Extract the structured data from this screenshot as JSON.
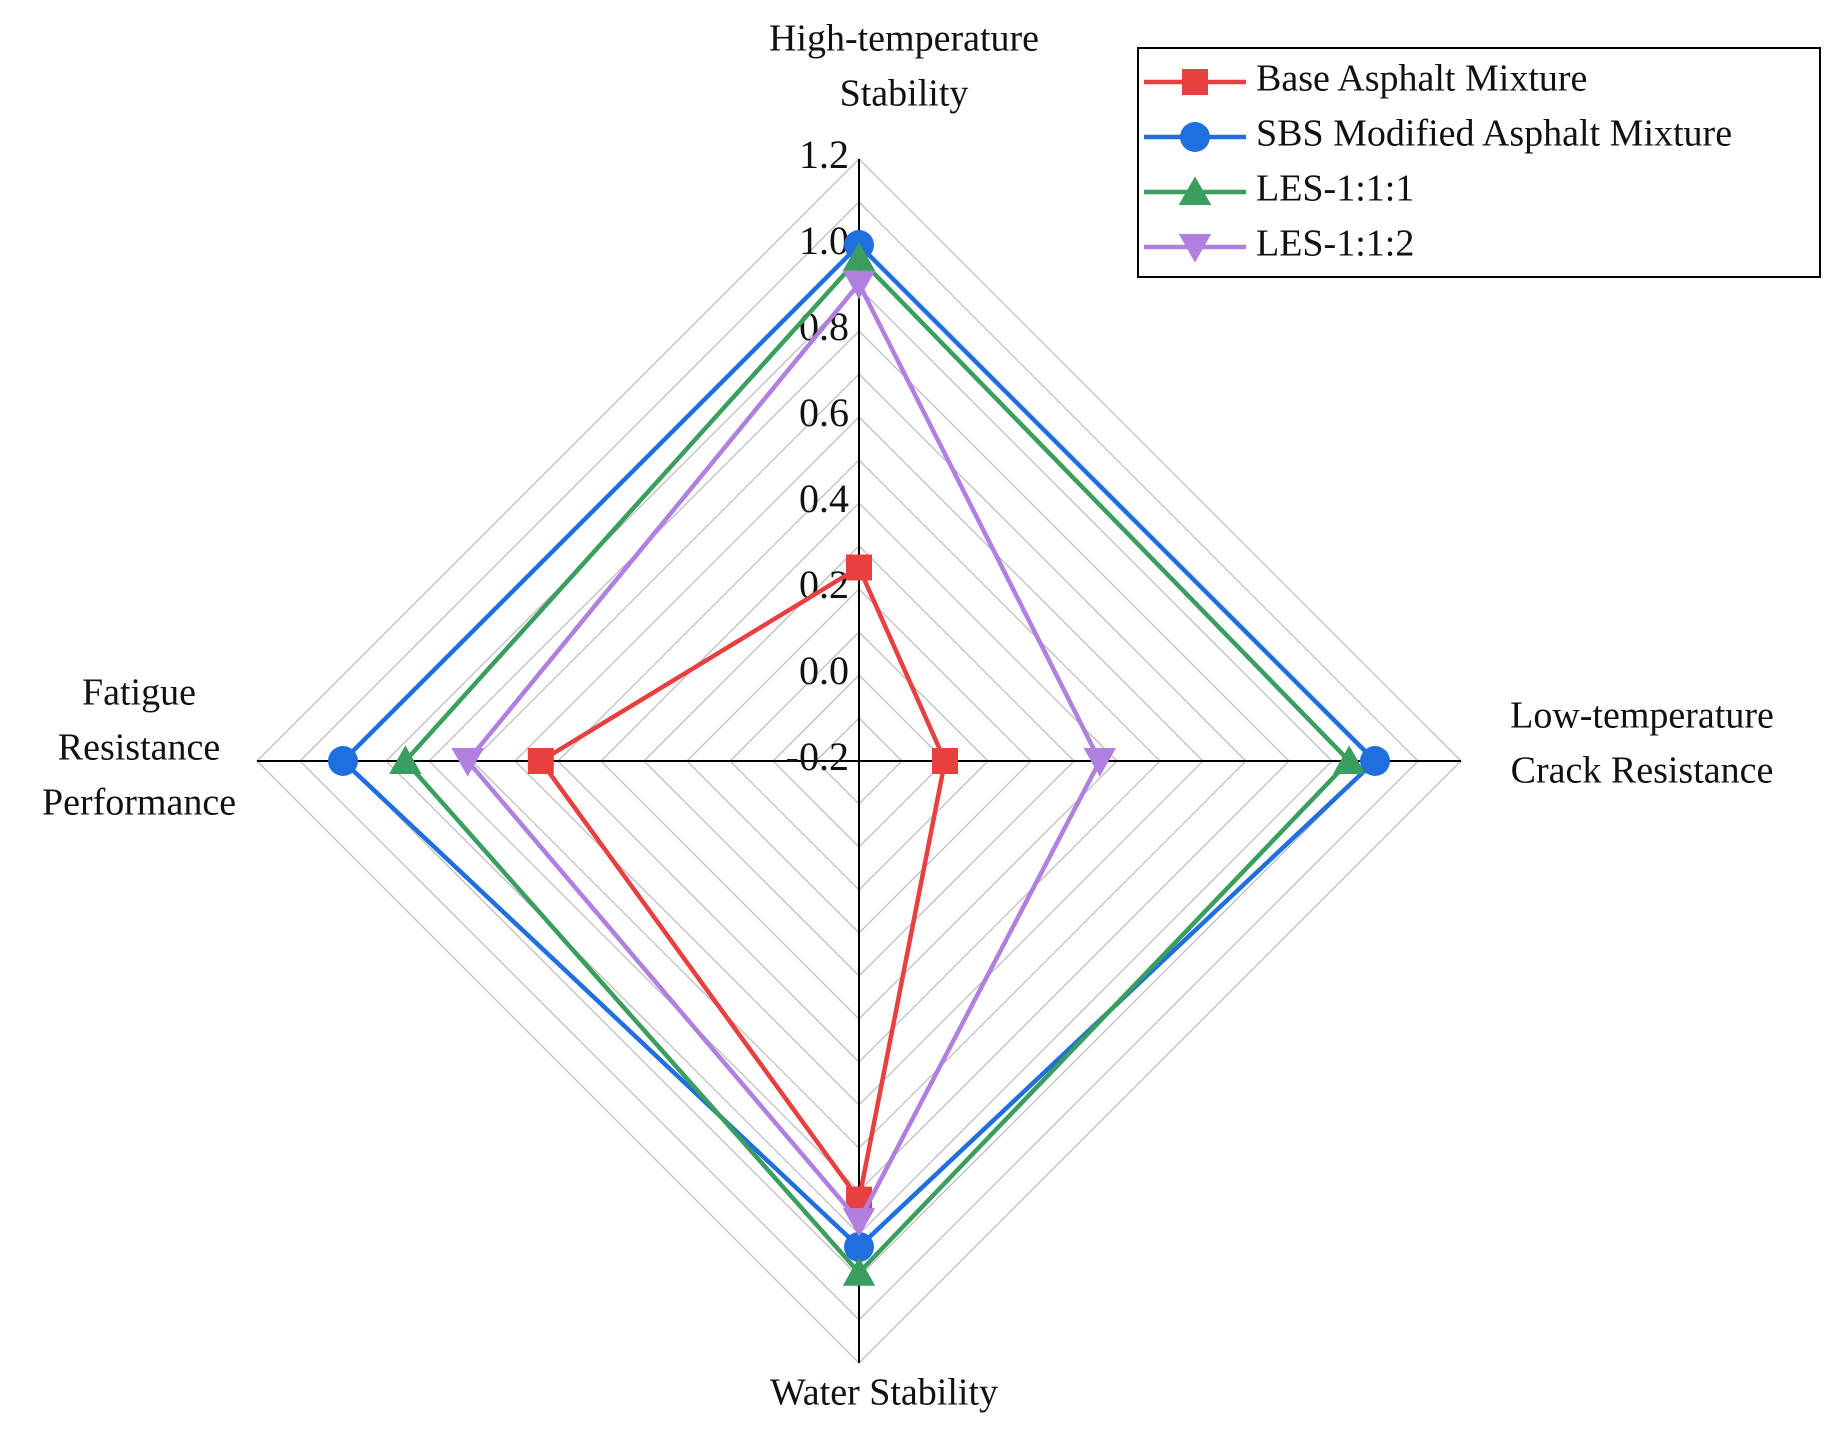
{
  "chart_data": {
    "type": "radar",
    "categories": [
      [
        "High-temperature",
        "Stability"
      ],
      [
        "Low-temperature",
        "Crack Resistance"
      ],
      [
        "Water Stability"
      ],
      [
        "Fatigue",
        "Resistance",
        "Performance"
      ]
    ],
    "ylim": [
      -0.2,
      1.2
    ],
    "yticks": [
      -0.2,
      {
        "value": 0,
        "label": "0.0"
      },
      0.2,
      0.4,
      0.6,
      0.8,
      {
        "value": 1,
        "label": "1.0"
      },
      1.2
    ],
    "grid": true,
    "legend": "upper right",
    "series": [
      {
        "name": "Base Asphalt Mixture",
        "color": "#e8403f",
        "marker": "square",
        "values": [
          0.25,
          0.0,
          0.82,
          0.54
        ]
      },
      {
        "name": "SBS Modified Asphalt Mixture",
        "color": "#1f6fde",
        "marker": "circle",
        "values": [
          1.0,
          1.0,
          0.93,
          1.0
        ]
      },
      {
        "name": "LES-1:1:1",
        "color": "#3a9e5f",
        "marker": "triangle",
        "values": [
          0.97,
          0.94,
          0.99,
          0.855
        ]
      },
      {
        "name": "LES-1:1:2",
        "color": "#b07fe0",
        "marker": "triangle-down",
        "values": [
          0.91,
          0.36,
          0.87,
          0.71
        ]
      }
    ]
  }
}
